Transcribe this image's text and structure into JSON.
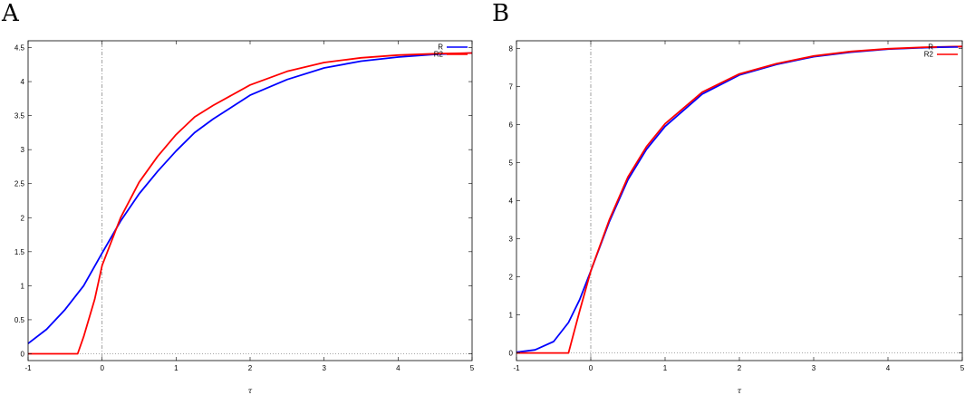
{
  "panels": [
    {
      "letter": "A"
    },
    {
      "letter": "B"
    }
  ],
  "chart_data": [
    {
      "type": "line",
      "title": "",
      "xlabel": "τ",
      "ylabel": "",
      "xlim": [
        -1,
        5
      ],
      "ylim": [
        -0.1,
        4.6
      ],
      "xticks": [
        -1,
        0,
        1,
        2,
        3,
        4,
        5
      ],
      "yticks": [
        0,
        0.5,
        1,
        1.5,
        2,
        2.5,
        3,
        3.5,
        4,
        4.5
      ],
      "grid": false,
      "reference_lines": {
        "x": 0,
        "y": 0
      },
      "legend_position": "top-right",
      "series": [
        {
          "name": "R",
          "color": "#0000ff",
          "x": [
            -1,
            -0.75,
            -0.5,
            -0.25,
            0,
            0.25,
            0.5,
            0.75,
            1,
            1.25,
            1.5,
            2,
            2.5,
            3,
            3.5,
            4,
            4.5,
            5
          ],
          "y": [
            0.15,
            0.36,
            0.65,
            1.0,
            1.48,
            1.95,
            2.35,
            2.68,
            2.98,
            3.25,
            3.45,
            3.8,
            4.03,
            4.2,
            4.3,
            4.36,
            4.4,
            4.42
          ]
        },
        {
          "name": "R2",
          "color": "#ff0000",
          "x": [
            -1,
            -0.33,
            -0.25,
            -0.1,
            0,
            0.25,
            0.5,
            0.75,
            1,
            1.25,
            1.5,
            2,
            2.5,
            3,
            3.5,
            4,
            4.5,
            5
          ],
          "y": [
            0,
            0,
            0.25,
            0.8,
            1.3,
            2.0,
            2.52,
            2.9,
            3.22,
            3.48,
            3.65,
            3.95,
            4.15,
            4.28,
            4.35,
            4.39,
            4.41,
            4.42
          ]
        }
      ]
    },
    {
      "type": "line",
      "title": "",
      "xlabel": "τ",
      "ylabel": "",
      "xlim": [
        -1,
        5
      ],
      "ylim": [
        -0.2,
        8.2
      ],
      "xticks": [
        -1,
        0,
        1,
        2,
        3,
        4,
        5
      ],
      "yticks": [
        0,
        1,
        2,
        3,
        4,
        5,
        6,
        7,
        8
      ],
      "grid": false,
      "reference_lines": {
        "x": 0,
        "y": 0
      },
      "legend_position": "top-right",
      "series": [
        {
          "name": "R",
          "color": "#0000ff",
          "x": [
            -1,
            -0.75,
            -0.5,
            -0.3,
            -0.15,
            0,
            0.25,
            0.5,
            0.75,
            1,
            1.5,
            2,
            2.5,
            3,
            3.5,
            4,
            4.5,
            5
          ],
          "y": [
            0.02,
            0.08,
            0.3,
            0.8,
            1.4,
            2.15,
            3.45,
            4.55,
            5.35,
            5.95,
            6.8,
            7.3,
            7.58,
            7.78,
            7.9,
            7.98,
            8.02,
            8.05
          ]
        },
        {
          "name": "R2",
          "color": "#ff0000",
          "x": [
            -1,
            -0.3,
            -0.15,
            0,
            0.25,
            0.5,
            0.75,
            1,
            1.5,
            2,
            2.5,
            3,
            3.5,
            4,
            4.5,
            5
          ],
          "y": [
            0,
            0,
            1.1,
            2.15,
            3.5,
            4.62,
            5.42,
            6.02,
            6.85,
            7.33,
            7.6,
            7.8,
            7.92,
            7.99,
            8.03,
            8.05
          ]
        }
      ]
    }
  ]
}
